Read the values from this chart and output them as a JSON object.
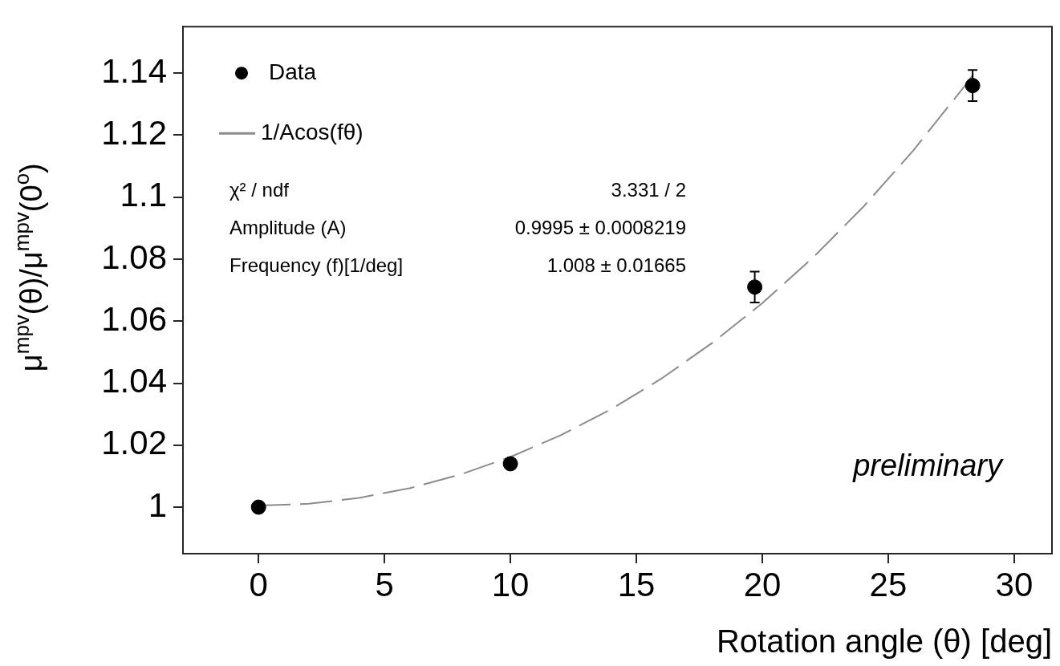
{
  "chart_data": {
    "type": "scatter",
    "xlabel": "Rotation angle (θ) [deg]",
    "ylabel": "μ$^{mpv}$(θ)/μ$^{mpv}$(0$^{o}$)",
    "xlim": [
      -3,
      31.5
    ],
    "xticks": [
      0,
      5,
      10,
      15,
      20,
      25,
      30
    ],
    "ylim": [
      0.985,
      1.155
    ],
    "yticks": [
      1,
      1.02,
      1.04,
      1.06,
      1.08,
      1.1,
      1.12,
      1.14
    ],
    "grid": false,
    "legend": "top left",
    "series": [
      {
        "name": "Data",
        "type": "scatter",
        "marker": "circle",
        "color": "#000000",
        "x": [
          0,
          10,
          19.7,
          28.35
        ],
        "values": [
          1.0,
          1.014,
          1.071,
          1.136
        ],
        "errors": [
          null,
          null,
          0.005,
          0.005
        ]
      },
      {
        "name": "1/Acos(fθ)",
        "type": "line",
        "marker": "none",
        "line_style": "dashed",
        "color": "#8c8c8c",
        "x": [
          0,
          2,
          4,
          6,
          8,
          10,
          12,
          14,
          16,
          18,
          20,
          22,
          24,
          26,
          28,
          28.5
        ],
        "values": [
          1.0005,
          1.0011,
          1.003,
          1.0061,
          1.0105,
          1.0162,
          1.0232,
          1.0316,
          1.0415,
          1.0529,
          1.0658,
          1.0804,
          1.0968,
          1.1151,
          1.1355,
          1.141
        ]
      }
    ],
    "annotations": [
      "χ² / ndf",
      "3.331 / 2",
      "Amplitude (A)",
      "0.9995 ± 0.0008219",
      "Frequency (f)[1/deg]",
      "1.008 ± 0.01665",
      "preliminary"
    ]
  }
}
